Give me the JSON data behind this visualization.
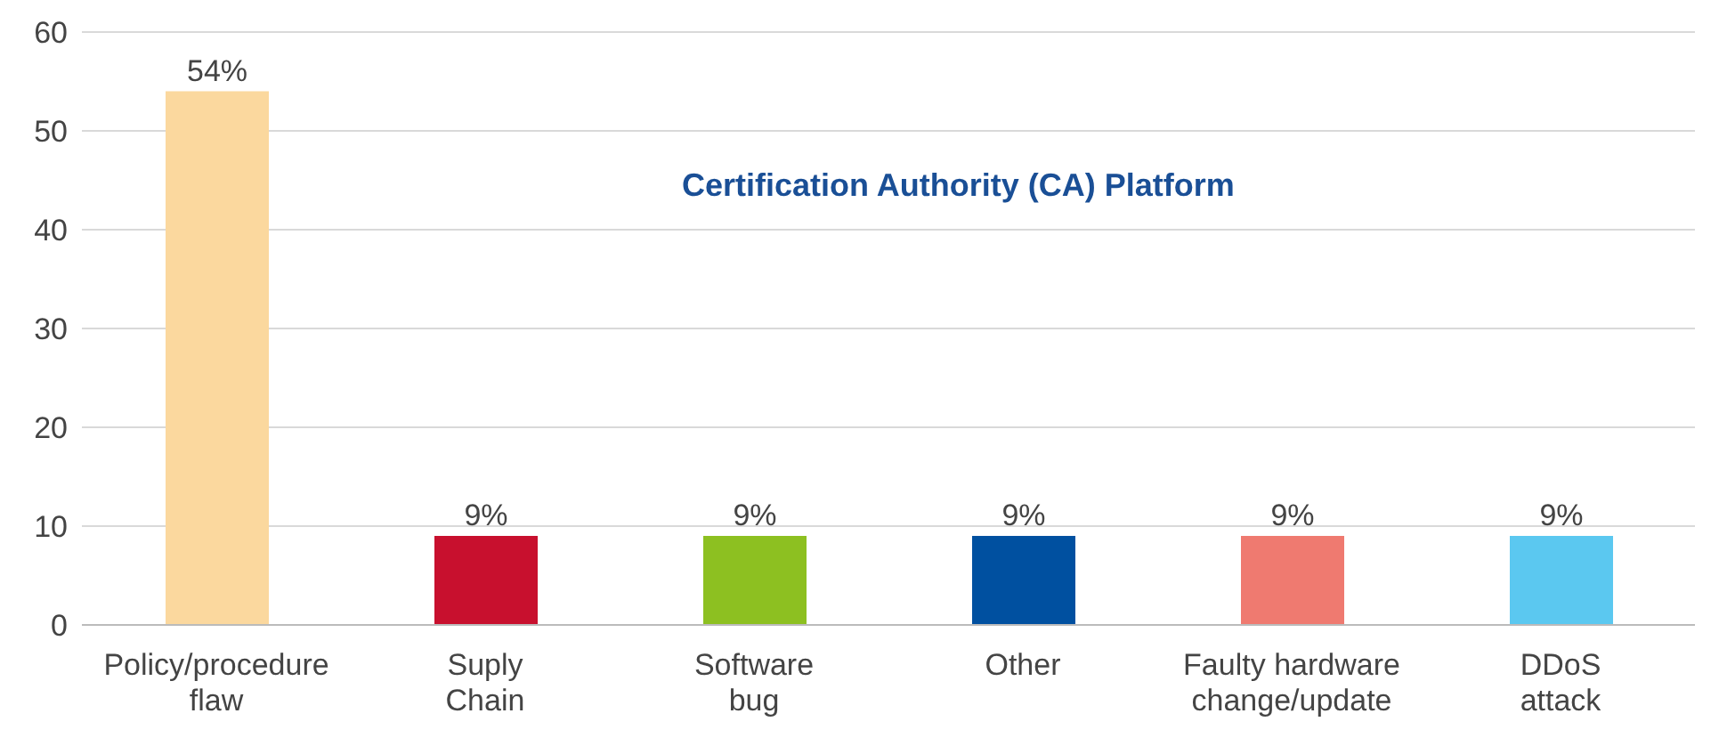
{
  "chart_data": {
    "type": "bar",
    "title": "Certification Authority (CA) Platform",
    "categories": [
      "Policy/procedure flaw",
      "Suply Chain",
      "Software bug",
      "Other",
      "Faulty hardware change/update",
      "DDoS attack"
    ],
    "values": [
      54,
      9,
      9,
      9,
      9,
      9
    ],
    "colors": [
      "#fbd89e",
      "#c8102e",
      "#8dc021",
      "#0050a0",
      "#ef7a70",
      "#5bc8f0"
    ],
    "value_labels": [
      "54%",
      "9%",
      "9%",
      "9%",
      "9%",
      "9%"
    ],
    "ylim": [
      0,
      60
    ],
    "yticks": [
      0,
      10,
      20,
      30,
      40,
      50,
      60
    ],
    "grid": "y"
  }
}
